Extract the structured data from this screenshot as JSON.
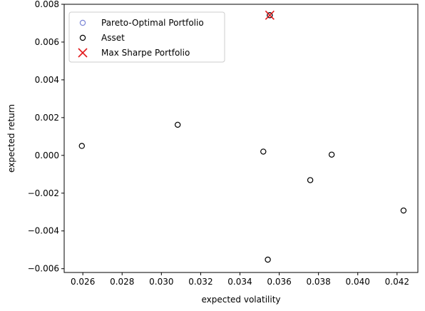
{
  "chart_data": {
    "type": "scatter",
    "xlabel": "expected volatility",
    "ylabel": "expected return",
    "xlim": [
      0.02505,
      0.04306
    ],
    "ylim": [
      -0.0062,
      0.008
    ],
    "xticks": [
      0.026,
      0.028,
      0.03,
      0.032,
      0.034,
      0.036,
      0.038,
      0.04,
      0.042
    ],
    "xtick_labels": [
      "0.026",
      "0.028",
      "0.030",
      "0.032",
      "0.034",
      "0.036",
      "0.038",
      "0.040",
      "0.042"
    ],
    "yticks": [
      -0.006,
      -0.004,
      -0.002,
      0.0,
      0.002,
      0.004,
      0.006,
      0.008
    ],
    "ytick_labels": [
      "−0.006",
      "−0.004",
      "−0.002",
      "0.000",
      "0.002",
      "0.004",
      "0.006",
      "0.008"
    ],
    "grid": false,
    "legend_position": "top-left",
    "series": [
      {
        "name": "Pareto-Optimal Portfolio",
        "marker": "open-circle",
        "color": "#7b86d6",
        "points": [
          {
            "x": 0.03552,
            "y": 0.00742
          }
        ]
      },
      {
        "name": "Asset",
        "marker": "open-circle",
        "color": "#000000",
        "points": [
          {
            "x": 0.02595,
            "y": 0.0005
          },
          {
            "x": 0.03083,
            "y": 0.00162
          },
          {
            "x": 0.03519,
            "y": 0.0002
          },
          {
            "x": 0.03542,
            "y": -0.00552
          },
          {
            "x": 0.03552,
            "y": 0.00742
          },
          {
            "x": 0.03758,
            "y": -0.00131
          },
          {
            "x": 0.03867,
            "y": 4e-05
          },
          {
            "x": 0.04233,
            "y": -0.00292
          }
        ]
      },
      {
        "name": "Max Sharpe Portfolio",
        "marker": "x",
        "color": "#e31a1c",
        "points": [
          {
            "x": 0.03552,
            "y": 0.00742
          }
        ]
      }
    ]
  }
}
